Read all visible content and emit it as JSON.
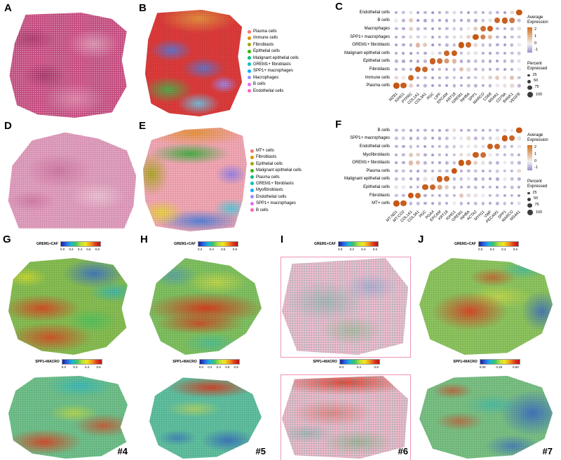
{
  "panelA": {
    "label": "A"
  },
  "panelB": {
    "label": "B",
    "legend": [
      {
        "name": "Plasma cells",
        "color": "#F8766D"
      },
      {
        "name": "Immune cells",
        "color": "#D89000"
      },
      {
        "name": "Fibroblasts",
        "color": "#A3A500"
      },
      {
        "name": "Epithelial cells",
        "color": "#39B600"
      },
      {
        "name": "Malignant epithelial cells",
        "color": "#00BF7D"
      },
      {
        "name": "GREM1+ fibroblasts",
        "color": "#00BFC4"
      },
      {
        "name": "SPP1+ macrophages",
        "color": "#00B0F6"
      },
      {
        "name": "Macrophages",
        "color": "#9590FF"
      },
      {
        "name": "B cells",
        "color": "#E76BF3"
      },
      {
        "name": "Endothelial cells",
        "color": "#FF62BC"
      }
    ]
  },
  "panelC": {
    "label": "C",
    "avg": {
      "title": "Average Expression",
      "ticks": [
        "2",
        "1",
        "0",
        "-1"
      ]
    },
    "pct": {
      "title": "Percent Expressed",
      "ticks": [
        "25",
        "50",
        "75",
        "100"
      ]
    }
  },
  "panelD": {
    "label": "D"
  },
  "panelE": {
    "label": "E",
    "legend": [
      {
        "name": "MT+ cells",
        "color": "#F8766D"
      },
      {
        "name": "Fibroblasts",
        "color": "#D89000"
      },
      {
        "name": "Epithelial cells",
        "color": "#A3A500"
      },
      {
        "name": "Malignant epithelial cells",
        "color": "#39B600"
      },
      {
        "name": "Plasma cells",
        "color": "#00BF7D"
      },
      {
        "name": "GREM1+ fibroblasts",
        "color": "#00BFC4"
      },
      {
        "name": "Myofibroblasts",
        "color": "#00B0F6"
      },
      {
        "name": "Endothelial cells",
        "color": "#9590FF"
      },
      {
        "name": "SPP1+ macrophages",
        "color": "#E76BF3"
      },
      {
        "name": "B cells",
        "color": "#FF62BC"
      }
    ]
  },
  "panelF": {
    "label": "F",
    "avg": {
      "title": "Average Expression",
      "ticks": [
        "2",
        "1",
        "0",
        "-1"
      ]
    },
    "pct": {
      "title": "Percent Expressed",
      "ticks": [
        "25",
        "50",
        "75",
        "100"
      ]
    }
  },
  "spatial": {
    "grem1_label": "GREM1+CAF",
    "spp1_label": "SPP1+MACRO",
    "columns": [
      {
        "label": "G",
        "sample": "#4",
        "grem1_ticks": [
          "0.0",
          "0.2",
          "0.4",
          "0.6",
          "0.8"
        ],
        "spp1_ticks": [
          "0.0",
          "0.2",
          "0.4",
          "0.6"
        ]
      },
      {
        "label": "H",
        "sample": "#5",
        "grem1_ticks": [
          "0.2",
          "0.4",
          "0.6",
          "0.8"
        ],
        "spp1_ticks": [
          "0.0",
          "0.2",
          "0.4",
          "0.6",
          "0.8"
        ]
      },
      {
        "label": "I",
        "sample": "#6",
        "grem1_ticks": [
          "0.0",
          "0.2",
          "0.4",
          "0.6"
        ],
        "spp1_ticks": [
          "0.0",
          "0.4",
          "0.8"
        ]
      },
      {
        "label": "J",
        "sample": "#7",
        "grem1_ticks": [
          "0.0",
          "0.2",
          "0.4",
          "0.6"
        ],
        "spp1_ticks": [
          "0.00",
          "0.25",
          "0.50"
        ]
      }
    ]
  },
  "chart_data": [
    {
      "type": "heatmap",
      "panel": "C",
      "encoding": "dot color = average expression (-1 to 2), dot size = percent expressed",
      "color_domain": [
        -1,
        2
      ],
      "colors": {
        "high": "#c65612",
        "mid": "#ebe8ee",
        "low": "#7c68b4"
      },
      "size_ticks": [
        25,
        50,
        75,
        100
      ],
      "y": [
        "Endothelial cells",
        "B cells",
        "Macrophages",
        "SPP1+ macrophages",
        "GREM1+ fibroblasts",
        "Malignant epithelial cells",
        "Epithelial cells",
        "Fibroblasts",
        "Immune cells",
        "Plasma cells"
      ],
      "x": [
        "MZB1",
        "IGHG1",
        "PTPRC",
        "COL1A1",
        "COL3A1",
        "PGC",
        "LIPF",
        "EPCAM",
        "KRT18",
        "GREM1",
        "INHBA",
        "SPP1",
        "MARCO",
        "CD68",
        "MS4A1",
        "CD79A",
        "BANK1",
        "VEGFB"
      ],
      "values": [
        [
          -0.4,
          -0.2,
          0.3,
          -0.5,
          -0.3,
          -0.6,
          -0.4,
          -0.2,
          0.1,
          -0.3,
          -0.5,
          -0.2,
          -0.4,
          -0.1,
          -0.3,
          -0.5,
          0.4,
          2.0
        ],
        [
          0.2,
          -0.3,
          0.6,
          -0.6,
          -0.4,
          -0.3,
          -0.5,
          -0.4,
          -0.2,
          -0.5,
          -0.3,
          -0.4,
          -0.2,
          0.1,
          1.8,
          1.9,
          1.6,
          -0.2
        ],
        [
          -0.3,
          -0.4,
          0.5,
          -0.2,
          -0.3,
          -0.5,
          -0.4,
          -0.3,
          -0.1,
          -0.2,
          0.2,
          0.6,
          1.7,
          1.9,
          -0.3,
          -0.4,
          -0.2,
          0.3
        ],
        [
          -0.4,
          -0.3,
          0.4,
          -0.1,
          0.2,
          -0.5,
          -0.3,
          -0.2,
          0.1,
          0.3,
          0.5,
          2.0,
          1.5,
          0.8,
          -0.3,
          -0.5,
          -0.2,
          -0.1
        ],
        [
          -0.5,
          -0.4,
          -0.3,
          0.8,
          0.6,
          -0.6,
          -0.4,
          -0.3,
          -0.2,
          2.0,
          1.8,
          0.4,
          -0.2,
          -0.3,
          -0.4,
          -0.5,
          -0.3,
          0.2
        ],
        [
          -0.4,
          -0.5,
          -0.6,
          -0.3,
          -0.4,
          0.2,
          -0.2,
          1.8,
          1.9,
          -0.3,
          0.1,
          0.3,
          -0.4,
          -0.5,
          -0.3,
          -0.4,
          -0.2,
          -0.1
        ],
        [
          -0.3,
          -0.4,
          -0.5,
          -0.4,
          -0.3,
          1.9,
          1.7,
          1.2,
          0.8,
          -0.4,
          -0.3,
          -0.2,
          -0.3,
          -0.4,
          -0.5,
          -0.3,
          -0.2,
          0.1
        ],
        [
          -0.4,
          -0.3,
          -0.4,
          1.9,
          1.8,
          -0.5,
          -0.3,
          -0.4,
          -0.2,
          0.7,
          0.4,
          -0.3,
          -0.2,
          -0.4,
          -0.3,
          -0.5,
          -0.4,
          0.2
        ],
        [
          0.4,
          0.2,
          1.8,
          -0.4,
          -0.3,
          -0.5,
          -0.4,
          -0.3,
          -0.2,
          -0.4,
          -0.3,
          -0.1,
          0.3,
          0.5,
          0.6,
          0.4,
          0.7,
          -0.2
        ],
        [
          2.0,
          1.9,
          0.5,
          -0.4,
          -0.3,
          -0.5,
          -0.4,
          -0.5,
          -0.3,
          -0.4,
          -0.2,
          -0.3,
          -0.4,
          -0.3,
          0.2,
          0.3,
          0.4,
          -0.3
        ]
      ]
    },
    {
      "type": "heatmap",
      "panel": "F",
      "encoding": "dot color = average expression (-1 to 2), dot size = percent expressed",
      "color_domain": [
        -1,
        2
      ],
      "colors": {
        "high": "#c65612",
        "mid": "#ebe8ee",
        "low": "#7c68b4"
      },
      "size_ticks": [
        25,
        50,
        75,
        100
      ],
      "y": [
        "B cells",
        "SPP1+ macrophages",
        "Endothelial cells",
        "Myofibroblasts",
        "GREM1+ fibroblasts",
        "Plasma cells",
        "Malignant epithelial cells",
        "Epithelial cells",
        "Fibroblasts",
        "MT+ cells"
      ],
      "x": [
        "MT-ND1",
        "MT-CO2",
        "COL1A1",
        "COL3A1",
        "PGC",
        "PGA4",
        "EPCAM",
        "KRT18",
        "IGHG1",
        "GREM1",
        "INHBA",
        "ACTA2",
        "MYH11",
        "VWF",
        "PECAM1",
        "SPP1",
        "MARCO",
        "MS4A1"
      ],
      "values": [
        [
          -0.3,
          -0.2,
          -0.5,
          -0.4,
          -0.3,
          -0.4,
          -0.5,
          -0.3,
          0.4,
          -0.4,
          -0.3,
          -0.2,
          -0.4,
          -0.3,
          -0.2,
          0.1,
          0.2,
          2.0
        ],
        [
          -0.2,
          -0.1,
          -0.4,
          -0.3,
          -0.2,
          -0.5,
          -0.4,
          -0.2,
          0.1,
          0.2,
          0.4,
          -0.3,
          -0.2,
          -0.1,
          0.2,
          2.0,
          1.8,
          0.3
        ],
        [
          -0.3,
          -0.4,
          -0.2,
          -0.3,
          -0.5,
          -0.4,
          -0.3,
          -0.2,
          -0.1,
          0.1,
          0.2,
          0.3,
          0.1,
          1.9,
          1.8,
          -0.2,
          -0.3,
          0.2
        ],
        [
          -0.4,
          -0.3,
          0.6,
          0.5,
          -0.4,
          -0.5,
          -0.3,
          -0.4,
          -0.2,
          0.4,
          0.3,
          1.9,
          1.7,
          0.2,
          -0.1,
          -0.3,
          -0.2,
          -0.4
        ],
        [
          -0.5,
          -0.4,
          0.8,
          0.7,
          -0.3,
          -0.4,
          -0.5,
          -0.3,
          -0.2,
          2.0,
          1.8,
          0.5,
          0.3,
          -0.2,
          -0.3,
          0.2,
          -0.1,
          -0.3
        ],
        [
          -0.3,
          -0.2,
          -0.4,
          -0.5,
          -0.3,
          -0.4,
          -0.2,
          -0.3,
          2.0,
          -0.4,
          -0.3,
          -0.2,
          -0.4,
          -0.3,
          -0.1,
          -0.2,
          -0.3,
          0.4
        ],
        [
          -0.2,
          -0.1,
          -0.5,
          -0.4,
          0.3,
          0.2,
          1.9,
          1.8,
          -0.3,
          -0.2,
          0.1,
          -0.4,
          -0.3,
          -0.5,
          -0.4,
          0.2,
          -0.2,
          -0.3
        ],
        [
          0.1,
          0.2,
          -0.4,
          -0.3,
          1.9,
          1.8,
          1.0,
          0.6,
          -0.2,
          -0.4,
          -0.3,
          -0.2,
          -0.4,
          -0.3,
          -0.5,
          -0.3,
          -0.2,
          -0.4
        ],
        [
          -0.2,
          -0.3,
          2.0,
          1.8,
          -0.4,
          -0.3,
          -0.4,
          -0.2,
          -0.3,
          0.6,
          0.4,
          0.3,
          0.2,
          -0.3,
          -0.2,
          -0.4,
          -0.3,
          -0.5
        ],
        [
          2.0,
          1.9,
          -0.3,
          -0.2,
          -0.4,
          -0.5,
          -0.3,
          -0.4,
          0.2,
          -0.3,
          -0.4,
          -0.2,
          -0.3,
          -0.4,
          -0.3,
          -0.2,
          -0.4,
          0.1
        ]
      ]
    }
  ]
}
